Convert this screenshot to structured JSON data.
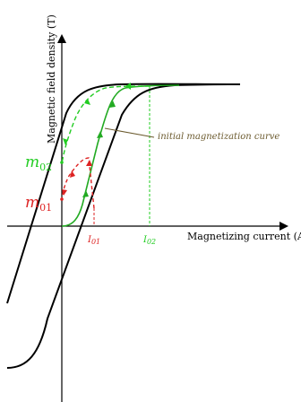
{
  "axes": {
    "y_label": "Magnetic field density (T)",
    "x_label": "Magnetizing current (A)"
  },
  "annotation": {
    "text": "initial magnetization curve",
    "color": "#6b5a2e"
  },
  "labels": {
    "m02": {
      "main": "m",
      "sub": "02",
      "color": "#22cc22"
    },
    "m01": {
      "main": "m",
      "sub": "01",
      "color": "#dd2222"
    },
    "i01": {
      "main": "I",
      "sub": "01",
      "color": "#dd2222"
    },
    "i02": {
      "main": "I",
      "sub": "02",
      "color": "#22cc22"
    }
  },
  "colors": {
    "major_loop": "#000000",
    "minor_red": "#dd2222",
    "minor_green": "#22cc22"
  }
}
